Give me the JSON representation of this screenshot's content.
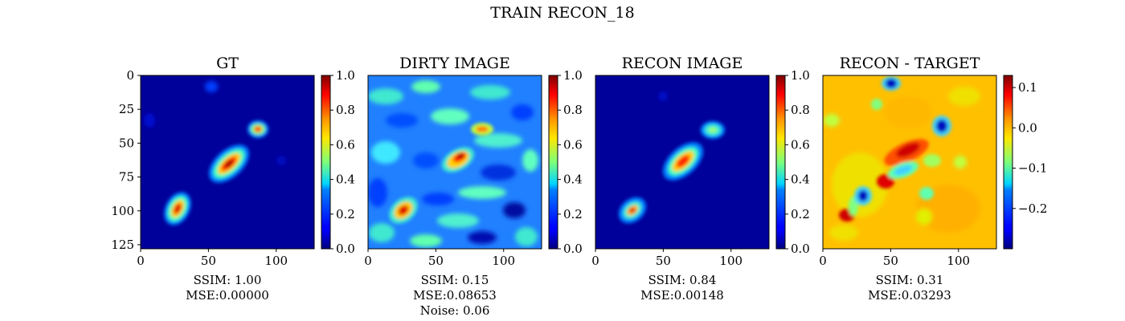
{
  "figure": {
    "title": "TRAIN RECON_18"
  },
  "colormap": "jet",
  "chart_data": [
    {
      "type": "heatmap",
      "title": "GT",
      "xlim": [
        0,
        128
      ],
      "ylim": [
        128,
        0
      ],
      "xticks": [
        "0",
        "50",
        "100"
      ],
      "yticks": [
        "0",
        "25",
        "50",
        "75",
        "100",
        "125"
      ],
      "colorbar": {
        "min": 0.0,
        "max": 1.0,
        "ticks": [
          "0.0",
          "0.2",
          "0.4",
          "0.6",
          "0.8",
          "1.0"
        ]
      },
      "features": [
        {
          "x": 65,
          "y": 65,
          "intensity": 1.0
        },
        {
          "x": 27,
          "y": 98,
          "intensity": 0.95
        },
        {
          "x": 87,
          "y": 39,
          "intensity": 0.8
        },
        {
          "x": 52,
          "y": 8,
          "intensity": 0.2
        }
      ],
      "caption": [
        "SSIM: 1.00",
        "MSE:0.00000"
      ]
    },
    {
      "type": "heatmap",
      "title": "DIRTY IMAGE",
      "xlim": [
        0,
        128
      ],
      "ylim": [
        128,
        0
      ],
      "xticks": [
        "0",
        "50",
        "100"
      ],
      "colorbar": {
        "min": 0.0,
        "max": 1.0,
        "ticks": [
          "0.0",
          "0.2",
          "0.4",
          "0.6",
          "0.8",
          "1.0"
        ]
      },
      "features": [
        {
          "x": 67,
          "y": 56,
          "intensity": 0.95
        },
        {
          "x": 25,
          "y": 100,
          "intensity": 0.9
        },
        {
          "x": 84,
          "y": 39,
          "intensity": 0.65
        }
      ],
      "caption": [
        "SSIM: 0.15",
        "MSE:0.08653",
        "Noise: 0.06"
      ]
    },
    {
      "type": "heatmap",
      "title": "RECON IMAGE",
      "xlim": [
        0,
        128
      ],
      "ylim": [
        128,
        0
      ],
      "xticks": [
        "0",
        "50",
        "100"
      ],
      "colorbar": {
        "min": 0.0,
        "max": 1.0,
        "ticks": [
          "0.0",
          "0.2",
          "0.4",
          "0.6",
          "0.8",
          "1.0"
        ]
      },
      "features": [
        {
          "x": 65,
          "y": 62,
          "intensity": 0.95
        },
        {
          "x": 27,
          "y": 100,
          "intensity": 0.85
        },
        {
          "x": 87,
          "y": 39,
          "intensity": 0.55
        }
      ],
      "caption": [
        "SSIM: 0.84",
        "MSE:0.00148"
      ]
    },
    {
      "type": "heatmap",
      "title": "RECON - TARGET",
      "xlim": [
        0,
        128
      ],
      "ylim": [
        128,
        0
      ],
      "xticks": [
        "0",
        "50",
        "100"
      ],
      "colorbar": {
        "min": -0.3,
        "max": 0.13,
        "ticks": [
          "0.1",
          "0.0",
          "−0.1",
          "−0.2"
        ]
      },
      "features": [
        {
          "x": 50,
          "y": 5,
          "value": -0.28
        },
        {
          "x": 87,
          "y": 37,
          "value": -0.27
        },
        {
          "x": 29,
          "y": 88,
          "value": -0.24
        },
        {
          "x": 55,
          "y": 70,
          "value": -0.15
        },
        {
          "x": 62,
          "y": 55,
          "value": 0.12
        },
        {
          "x": 45,
          "y": 77,
          "value": 0.11
        },
        {
          "x": 17,
          "y": 102,
          "value": 0.1
        }
      ],
      "caption": [
        "SSIM: 0.31",
        "MSE:0.03293"
      ]
    }
  ]
}
